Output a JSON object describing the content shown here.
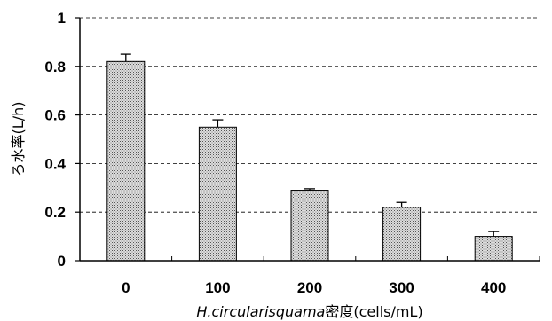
{
  "chart_data": {
    "type": "bar",
    "categories": [
      "0",
      "100",
      "200",
      "300",
      "400"
    ],
    "values": [
      0.82,
      0.55,
      0.29,
      0.22,
      0.1
    ],
    "errors": [
      0.03,
      0.03,
      0.006,
      0.02,
      0.02
    ],
    "ylim": [
      0,
      1
    ],
    "yticks": [
      "0",
      "0.2",
      "0.4",
      "0.6",
      "0.8",
      "1"
    ],
    "ylabel": "ろ水率(L/h)",
    "xlabel_italic": "H.circularisquama",
    "xlabel_rest": "密度(cells/mL)",
    "grid": "horizontal dashed",
    "bar_pattern": "dotted",
    "colors": {
      "bar_fill": "#d9d9d9",
      "bar_dot": "#555555",
      "axis": "#000000",
      "grid": "#000000"
    }
  }
}
